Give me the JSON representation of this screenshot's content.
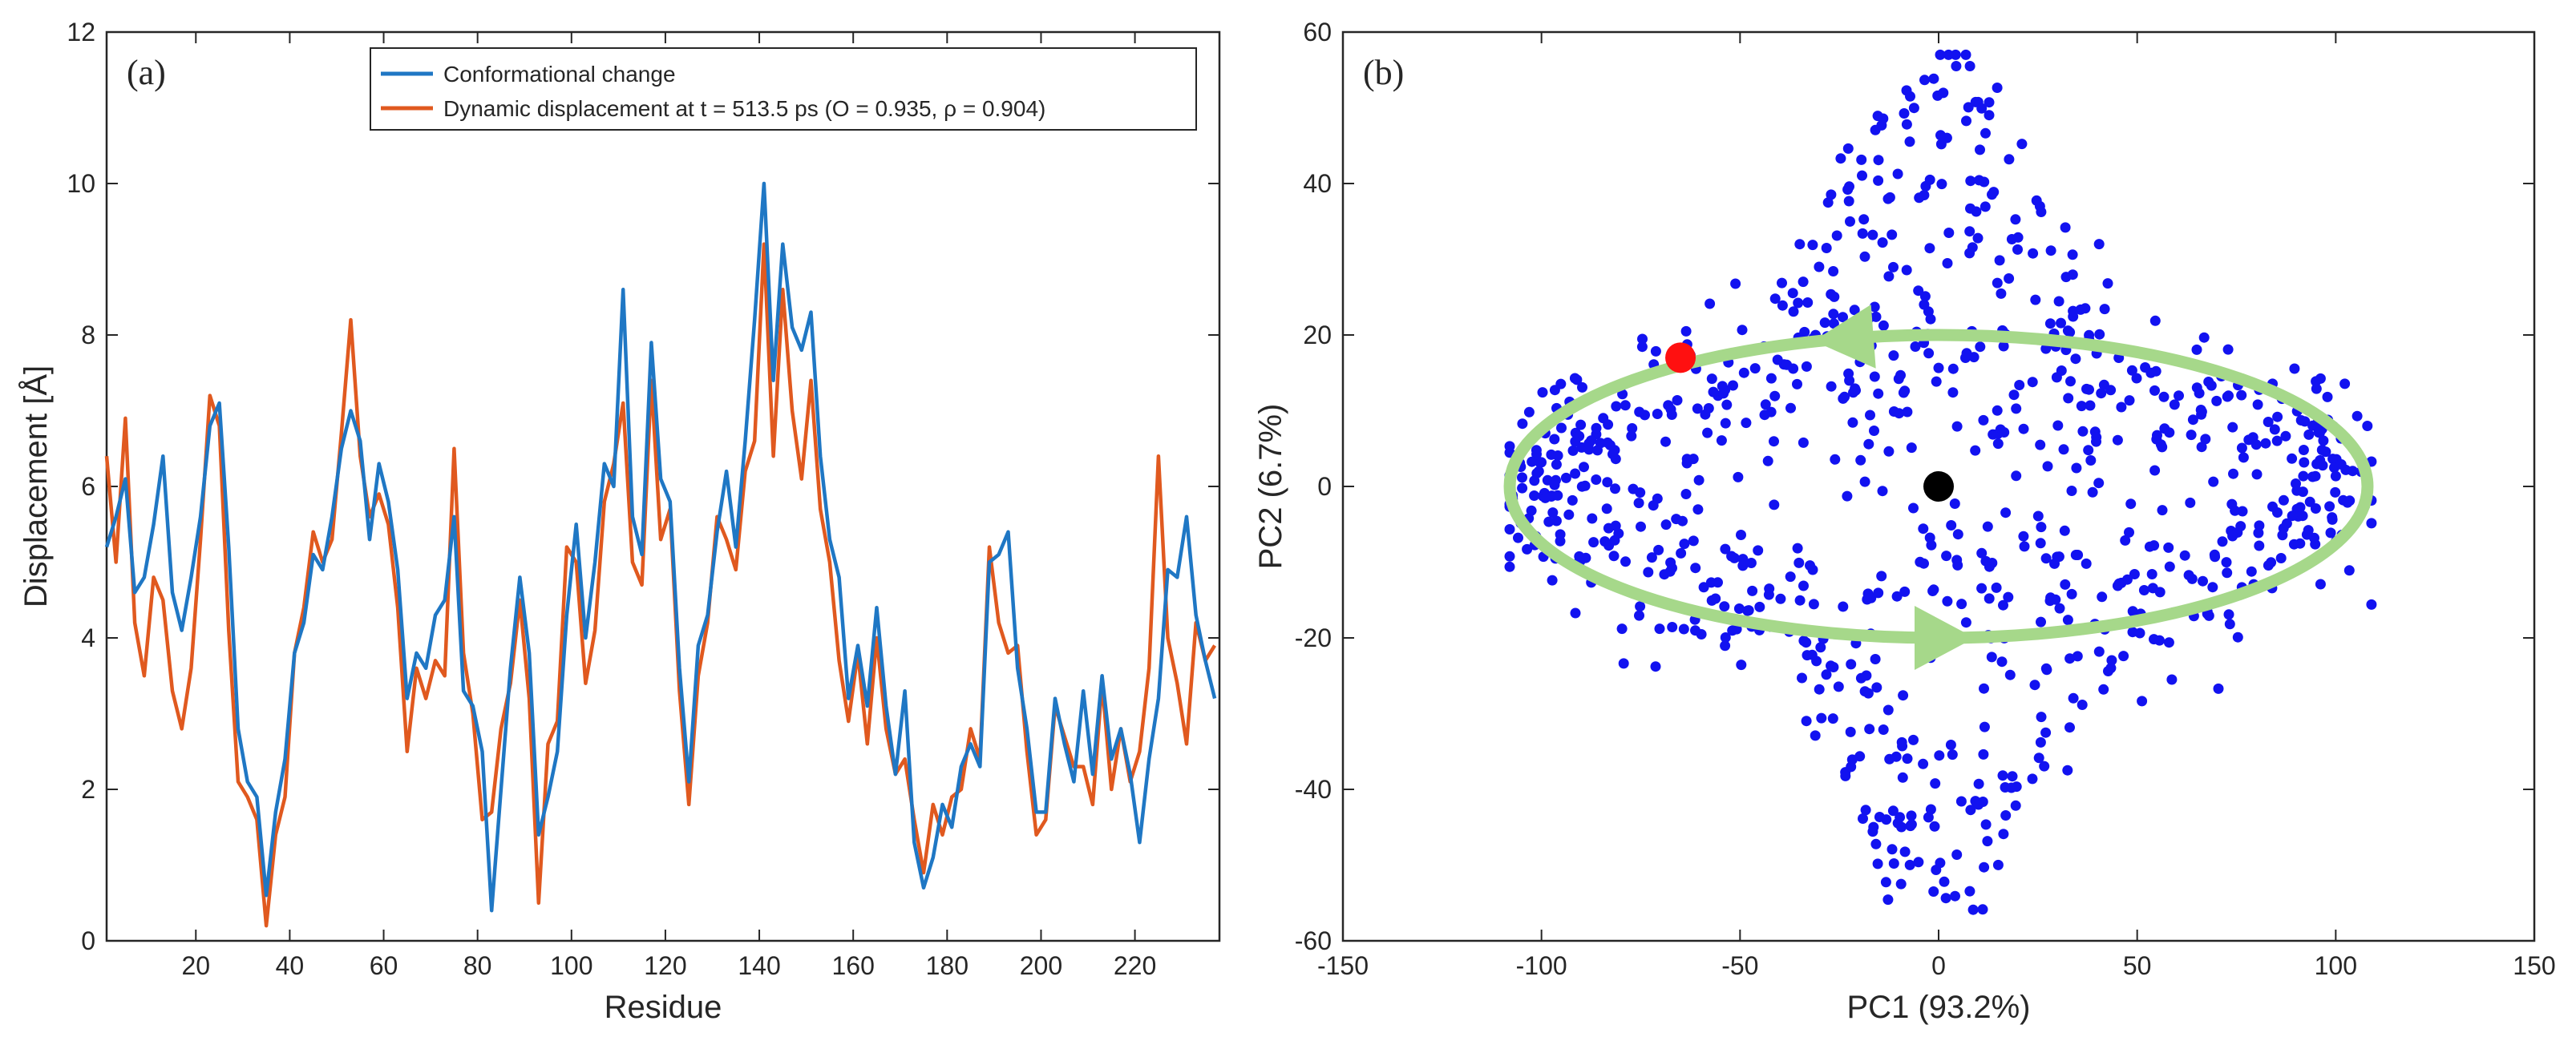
{
  "colors": {
    "series_a": "#1f77c4",
    "series_b": "#e0591f",
    "scatter": "#1212f0",
    "arrow": "#a6d88a",
    "start_marker": "#ff1010",
    "end_marker": "#000000"
  },
  "chart_data": [
    {
      "type": "line",
      "panel_label": "(a)",
      "xlabel": "Residue",
      "ylabel": "Displacement [Å]",
      "xlim": [
        1,
        238
      ],
      "ylim": [
        0,
        12
      ],
      "xticks": [
        "20",
        "40",
        "60",
        "80",
        "100",
        "120",
        "140",
        "160",
        "180",
        "200",
        "220"
      ],
      "yticks": [
        "0",
        "2",
        "4",
        "6",
        "8",
        "10",
        "12"
      ],
      "legend_position": "top-right",
      "series": [
        {
          "name": "Conformational change",
          "x": [
            1,
            3,
            5,
            7,
            9,
            11,
            13,
            15,
            17,
            19,
            21,
            23,
            25,
            27,
            29,
            31,
            33,
            35,
            37,
            39,
            41,
            43,
            45,
            47,
            49,
            51,
            53,
            55,
            57,
            59,
            61,
            63,
            65,
            67,
            69,
            71,
            73,
            75,
            77,
            79,
            81,
            83,
            85,
            87,
            89,
            91,
            93,
            95,
            97,
            99,
            101,
            103,
            105,
            107,
            109,
            111,
            113,
            115,
            117,
            119,
            121,
            123,
            125,
            127,
            129,
            131,
            133,
            135,
            137,
            139,
            141,
            143,
            145,
            147,
            149,
            151,
            153,
            155,
            157,
            159,
            161,
            163,
            165,
            167,
            169,
            171,
            173,
            175,
            177,
            179,
            181,
            183,
            185,
            187,
            189,
            191,
            193,
            195,
            197,
            199,
            201,
            203,
            205,
            207,
            209,
            211,
            213,
            215,
            217,
            219,
            221,
            223,
            225,
            227,
            229,
            231,
            233,
            235,
            237
          ],
          "values": [
            5.2,
            5.6,
            6.1,
            4.6,
            4.8,
            5.5,
            6.4,
            4.6,
            4.1,
            4.8,
            5.6,
            6.8,
            7.1,
            5.2,
            2.8,
            2.1,
            1.9,
            0.6,
            1.7,
            2.4,
            3.8,
            4.2,
            5.1,
            4.9,
            5.6,
            6.5,
            7.0,
            6.6,
            5.3,
            6.3,
            5.8,
            4.9,
            3.2,
            3.8,
            3.6,
            4.3,
            4.5,
            5.6,
            3.3,
            3.1,
            2.5,
            0.4,
            2.0,
            3.6,
            4.8,
            3.8,
            1.4,
            1.9,
            2.5,
            4.3,
            5.5,
            4.0,
            5.0,
            6.3,
            6.0,
            8.6,
            5.6,
            5.1,
            7.9,
            6.1,
            5.8,
            3.6,
            2.1,
            3.9,
            4.3,
            5.4,
            6.2,
            5.2,
            6.6,
            8.2,
            10.0,
            7.4,
            9.2,
            8.1,
            7.8,
            8.3,
            6.4,
            5.3,
            4.8,
            3.2,
            3.9,
            3.1,
            4.4,
            3.1,
            2.2,
            3.3,
            1.3,
            0.7,
            1.1,
            1.8,
            1.5,
            2.3,
            2.6,
            2.3,
            5.0,
            5.1,
            5.4,
            3.6,
            2.8,
            1.7,
            1.7,
            3.2,
            2.6,
            2.1,
            3.3,
            2.2,
            3.5,
            2.4,
            2.8,
            2.2,
            1.3,
            2.4,
            3.2,
            4.9,
            4.8,
            5.6,
            4.3,
            3.7,
            3.2
          ]
        },
        {
          "name": "Dynamic displacement at t = 513.5 ps (O = 0.935, ρ = 0.904)",
          "x": [
            1,
            3,
            5,
            7,
            9,
            11,
            13,
            15,
            17,
            19,
            21,
            23,
            25,
            27,
            29,
            31,
            33,
            35,
            37,
            39,
            41,
            43,
            45,
            47,
            49,
            51,
            53,
            55,
            57,
            59,
            61,
            63,
            65,
            67,
            69,
            71,
            73,
            75,
            77,
            79,
            81,
            83,
            85,
            87,
            89,
            91,
            93,
            95,
            97,
            99,
            101,
            103,
            105,
            107,
            109,
            111,
            113,
            115,
            117,
            119,
            121,
            123,
            125,
            127,
            129,
            131,
            133,
            135,
            137,
            139,
            141,
            143,
            145,
            147,
            149,
            151,
            153,
            155,
            157,
            159,
            161,
            163,
            165,
            167,
            169,
            171,
            173,
            175,
            177,
            179,
            181,
            183,
            185,
            187,
            189,
            191,
            193,
            195,
            197,
            199,
            201,
            203,
            205,
            207,
            209,
            211,
            213,
            215,
            217,
            219,
            221,
            223,
            225,
            227,
            229,
            231,
            233,
            235,
            237
          ],
          "values": [
            6.4,
            5.0,
            6.9,
            4.2,
            3.5,
            4.8,
            4.5,
            3.3,
            2.8,
            3.6,
            5.3,
            7.2,
            6.8,
            4.1,
            2.1,
            1.9,
            1.6,
            0.2,
            1.4,
            1.9,
            3.8,
            4.4,
            5.4,
            5.0,
            5.3,
            6.7,
            8.2,
            6.4,
            5.6,
            5.9,
            5.5,
            4.4,
            2.5,
            3.6,
            3.2,
            3.7,
            3.5,
            6.5,
            3.8,
            3.0,
            1.6,
            1.7,
            2.8,
            3.4,
            4.5,
            3.2,
            0.5,
            2.6,
            2.9,
            5.2,
            5.0,
            3.4,
            4.1,
            5.8,
            6.3,
            7.1,
            5.0,
            4.7,
            7.4,
            5.3,
            5.7,
            3.3,
            1.8,
            3.5,
            4.2,
            5.6,
            5.3,
            4.9,
            6.2,
            6.6,
            9.2,
            6.4,
            8.6,
            7.0,
            6.1,
            7.4,
            5.7,
            5.0,
            3.7,
            2.9,
            3.8,
            2.6,
            4.0,
            2.8,
            2.2,
            2.4,
            1.6,
            0.9,
            1.8,
            1.4,
            1.9,
            2.0,
            2.8,
            2.4,
            5.2,
            4.2,
            3.8,
            3.9,
            2.5,
            1.4,
            1.6,
            3.1,
            2.7,
            2.3,
            2.3,
            1.8,
            3.4,
            2.0,
            2.8,
            2.1,
            2.5,
            3.6,
            6.4,
            4.0,
            3.4,
            2.6,
            4.2,
            3.7,
            3.9
          ]
        }
      ]
    },
    {
      "type": "scatter",
      "panel_label": "(b)",
      "xlabel": "PC1 (93.2%)",
      "ylabel": "PC2 (6.7%)",
      "xlim": [
        -150,
        150
      ],
      "ylim": [
        -60,
        60
      ],
      "xticks": [
        "-150",
        "-100",
        "-50",
        "0",
        "50",
        "100",
        "150"
      ],
      "yticks": [
        "-60",
        "-40",
        "-20",
        "0",
        "20",
        "40",
        "60"
      ],
      "point_count": 900,
      "trajectory_ellipse": {
        "center": [
          0,
          0
        ],
        "semi_axis_pc1": 108,
        "semi_axis_pc2": 20,
        "direction": "counter-clockwise"
      },
      "start_point": [
        -65,
        17
      ],
      "end_point": [
        0,
        0
      ]
    }
  ]
}
